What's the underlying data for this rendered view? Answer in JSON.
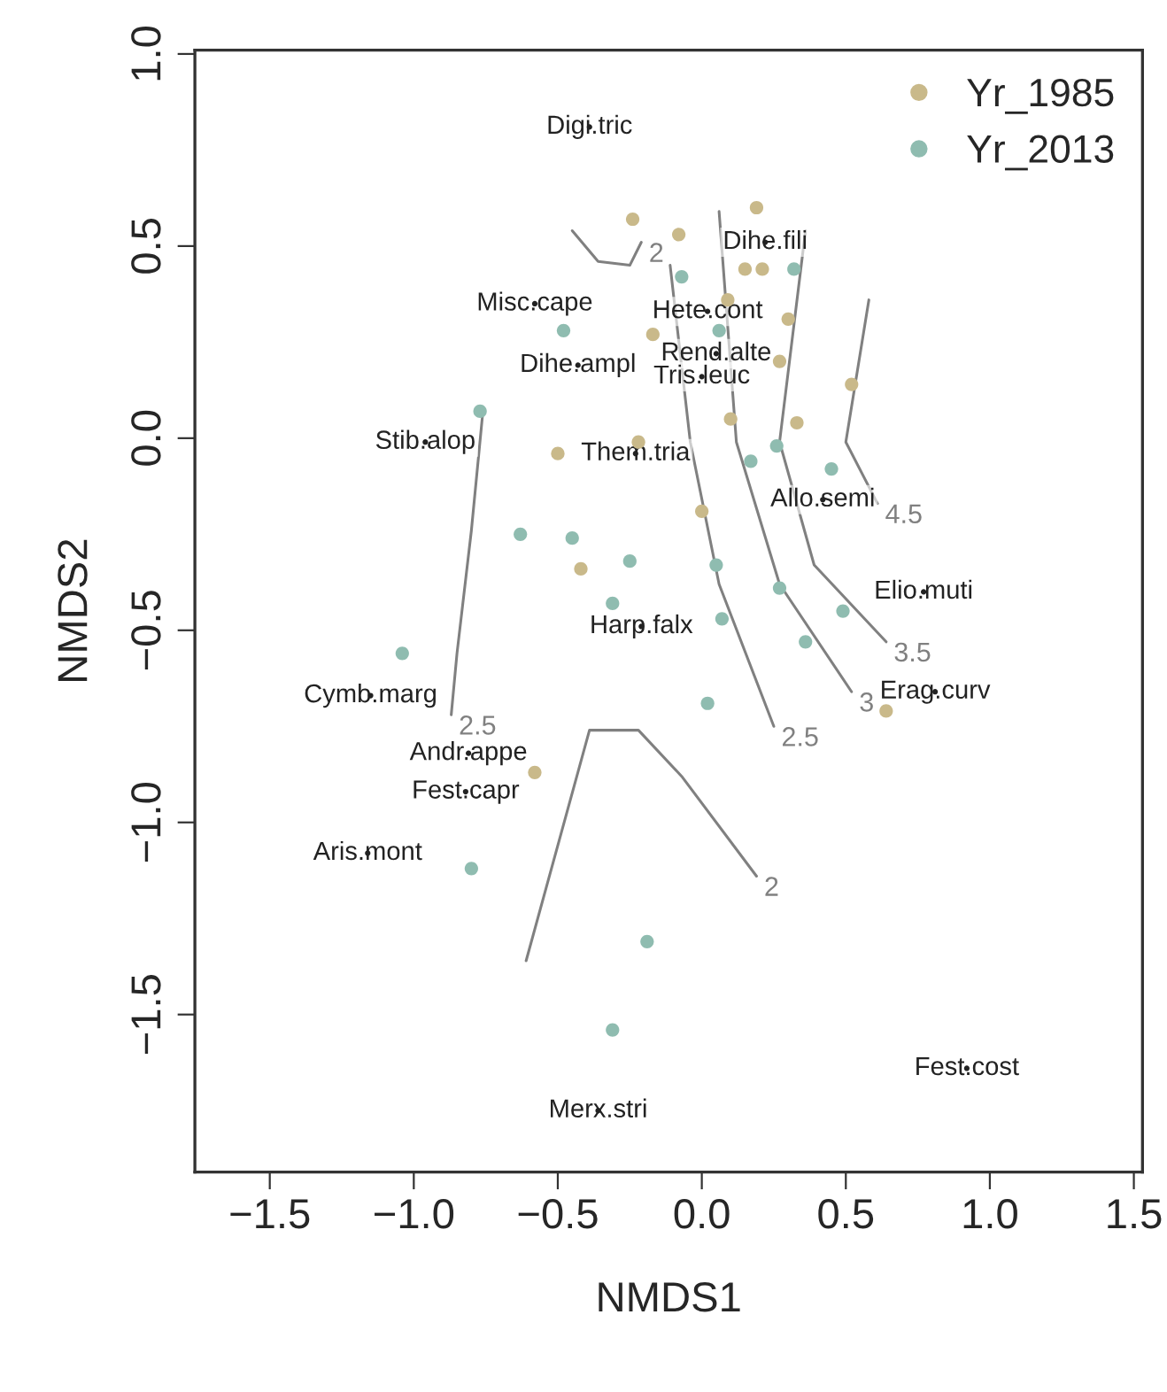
{
  "chart_data": {
    "type": "scatter",
    "xlabel": "NMDS1",
    "ylabel": "NMDS2",
    "xlim": [
      -1.76,
      1.53
    ],
    "ylim": [
      -1.91,
      1.01
    ],
    "xticks": [
      {
        "value": -1.5,
        "label": "−1.5"
      },
      {
        "value": -1.0,
        "label": "−1.0"
      },
      {
        "value": -0.5,
        "label": "−0.5"
      },
      {
        "value": 0.0,
        "label": "0.0"
      },
      {
        "value": 0.5,
        "label": "0.5"
      },
      {
        "value": 1.0,
        "label": "1.0"
      },
      {
        "value": 1.5,
        "label": "1.5"
      }
    ],
    "yticks": [
      {
        "value": -1.5,
        "label": "−1.5"
      },
      {
        "value": -1.0,
        "label": "−1.0"
      },
      {
        "value": -0.5,
        "label": "−0.5"
      },
      {
        "value": 0.0,
        "label": "0.0"
      },
      {
        "value": 0.5,
        "label": "0.5"
      },
      {
        "value": 1.0,
        "label": "1.0"
      }
    ],
    "grid": false,
    "legend": "top right",
    "series": [
      {
        "name": "Yr_1985",
        "color": "#c9b98a",
        "marker": "circle",
        "x": [
          -0.24,
          0.19,
          -0.08,
          0.15,
          0.21,
          0.09,
          0.3,
          0.52,
          0.33,
          0.1,
          -0.22,
          -0.5,
          -0.42,
          -0.58,
          0.64,
          0.0,
          -0.17,
          0.27
        ],
        "values": [
          0.57,
          0.6,
          0.53,
          0.44,
          0.44,
          0.36,
          0.31,
          0.14,
          0.04,
          0.05,
          -0.01,
          -0.04,
          -0.34,
          -0.87,
          -0.71,
          -0.19,
          0.27,
          0.2
        ]
      },
      {
        "name": "Yr_2013",
        "color": "#8fbcb0",
        "marker": "circle",
        "x": [
          -0.48,
          -0.77,
          -0.63,
          -0.45,
          -0.25,
          -0.07,
          0.32,
          0.17,
          0.26,
          -1.04,
          -0.8,
          -0.31,
          -0.19,
          -0.31,
          0.07,
          0.36,
          0.02,
          0.27,
          0.49,
          0.05,
          0.45,
          0.06
        ],
        "values": [
          0.28,
          0.07,
          -0.25,
          -0.26,
          -0.32,
          0.42,
          0.44,
          -0.06,
          -0.02,
          -0.56,
          -1.12,
          -0.43,
          -1.31,
          -1.54,
          -0.47,
          -0.53,
          -0.69,
          -0.39,
          -0.45,
          -0.33,
          -0.08,
          0.28
        ]
      },
      {
        "type": "line",
        "name": "2.5",
        "color": "#808080",
        "x": [
          -0.76,
          -0.8,
          -0.85,
          -0.87
        ],
        "values": [
          0.07,
          -0.24,
          -0.56,
          -0.72
        ]
      },
      {
        "type": "line",
        "name": "2",
        "color": "#808080",
        "x": [
          -0.61,
          -0.39,
          -0.22,
          -0.07,
          0.19
        ],
        "values": [
          -1.36,
          -0.76,
          -0.76,
          -0.88,
          -1.14
        ]
      },
      {
        "type": "line",
        "name": "2",
        "color": "#808080",
        "x": [
          -0.45,
          -0.36,
          -0.25,
          -0.21
        ],
        "values": [
          0.54,
          0.46,
          0.45,
          0.51
        ]
      },
      {
        "type": "line",
        "name": "2.5",
        "color": "#808080",
        "x": [
          -0.11,
          -0.04,
          0.06,
          0.25
        ],
        "values": [
          0.45,
          -0.01,
          -0.38,
          -0.75
        ]
      },
      {
        "type": "line",
        "name": "3",
        "color": "#808080",
        "x": [
          0.06,
          0.12,
          0.27,
          0.52
        ],
        "values": [
          0.59,
          -0.01,
          -0.38,
          -0.66
        ]
      },
      {
        "type": "line",
        "name": "3.5",
        "color": "#808080",
        "x": [
          0.36,
          0.27,
          0.39,
          0.64
        ],
        "values": [
          0.54,
          -0.01,
          -0.33,
          -0.53
        ]
      },
      {
        "type": "line",
        "name": "4.5",
        "color": "#808080",
        "x": [
          0.58,
          0.5,
          0.61
        ],
        "values": [
          0.36,
          -0.01,
          -0.17
        ]
      },
      {
        "type": "scatter",
        "marker": "circle",
        "color": "#222222",
        "x": [
          -0.39,
          0.22,
          -0.58,
          0.02,
          -0.43,
          0.05,
          0.0,
          -0.96,
          -0.23,
          0.42,
          0.77,
          -0.21,
          0.81,
          -1.15,
          -0.81,
          -0.82,
          -1.16,
          -0.36,
          0.92
        ],
        "values": [
          0.81,
          0.51,
          0.35,
          0.33,
          0.19,
          0.22,
          0.16,
          -0.01,
          -0.04,
          -0.16,
          -0.4,
          -0.49,
          -0.66,
          -0.67,
          -0.82,
          -0.92,
          -1.08,
          -1.75,
          -1.64
        ],
        "value_labels": [
          "Digi.tric",
          "Dihe.fili",
          "Misc.cape",
          "Hete.cont",
          "Dihe.ampl",
          "Rend.alte",
          "Tris.leuc",
          "Stib.alop",
          "Them.tria",
          "Allo.semi",
          "Elio.muti",
          "Harp.falx",
          "Erag.curv",
          "Cymb.marg",
          "Andr.appe",
          "Fest.capr",
          "Aris.mont",
          "Merx.stri",
          "Fest.cost"
        ]
      }
    ]
  }
}
